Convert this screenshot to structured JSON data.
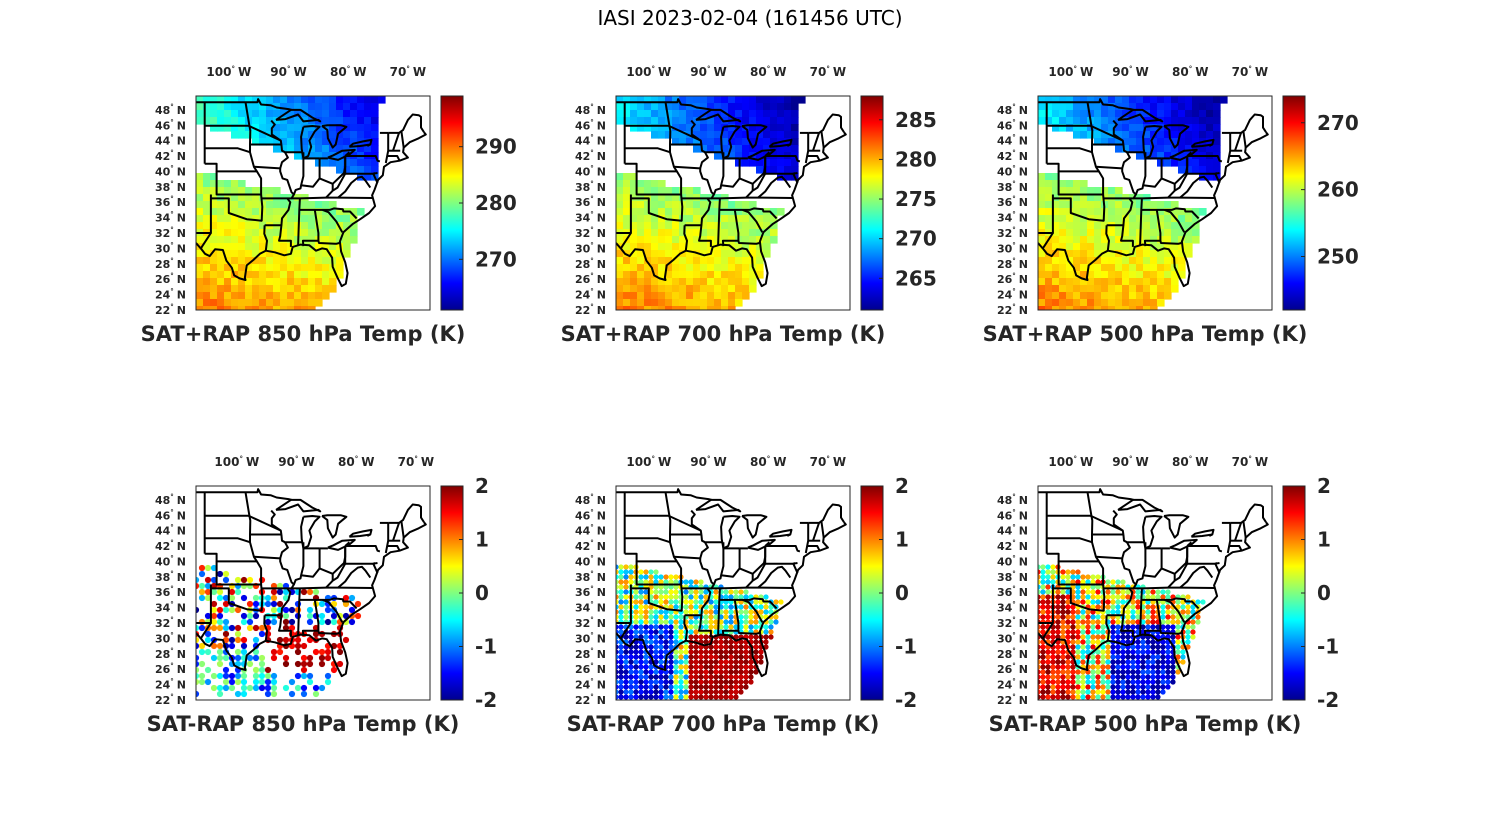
{
  "title": "IASI 2023-02-04 (161456 UTC)",
  "colormap": "jet",
  "colormap_stops": [
    "#00008f",
    "#0000ff",
    "#0080ff",
    "#00ffff",
    "#80ff80",
    "#ffff00",
    "#ff8000",
    "#ff0000",
    "#800000"
  ],
  "map_line_color": "#000000",
  "lon_ticks": [
    {
      "deg": "100",
      "hem": "W"
    },
    {
      "deg": "90",
      "hem": "W"
    },
    {
      "deg": "80",
      "hem": "W"
    },
    {
      "deg": "70",
      "hem": "W"
    }
  ],
  "lat_ticks": [
    {
      "deg": "48",
      "hem": "N"
    },
    {
      "deg": "46",
      "hem": "N"
    },
    {
      "deg": "44",
      "hem": "N"
    },
    {
      "deg": "42",
      "hem": "N"
    },
    {
      "deg": "40",
      "hem": "N"
    },
    {
      "deg": "38",
      "hem": "N"
    },
    {
      "deg": "36",
      "hem": "N"
    },
    {
      "deg": "34",
      "hem": "N"
    },
    {
      "deg": "32",
      "hem": "N"
    },
    {
      "deg": "30",
      "hem": "N"
    },
    {
      "deg": "28",
      "hem": "N"
    },
    {
      "deg": "26",
      "hem": "N"
    },
    {
      "deg": "24",
      "hem": "N"
    },
    {
      "deg": "22",
      "hem": "N"
    }
  ],
  "panels": [
    {
      "title": "SAT+RAP 850 hPa Temp (K)",
      "clim": [
        261,
        299
      ],
      "ticks": [
        "270",
        "280",
        "290"
      ],
      "kind": "temp"
    },
    {
      "title": "SAT+RAP 700 hPa Temp (K)",
      "clim": [
        261,
        288
      ],
      "ticks": [
        "265",
        "270",
        "275",
        "280",
        "285"
      ],
      "kind": "temp"
    },
    {
      "title": "SAT+RAP 500 hPa Temp (K)",
      "clim": [
        242,
        274
      ],
      "ticks": [
        "250",
        "260",
        "270"
      ],
      "kind": "temp"
    },
    {
      "title": "SAT-RAP 850 hPa Temp (K)",
      "clim": [
        -2,
        2
      ],
      "ticks": [
        "-2",
        "-1",
        "0",
        "1",
        "2"
      ],
      "kind": "diff"
    },
    {
      "title": "SAT-RAP 700 hPa Temp (K)",
      "clim": [
        -2,
        2
      ],
      "ticks": [
        "-2",
        "-1",
        "0",
        "1",
        "2"
      ],
      "kind": "diff"
    },
    {
      "title": "SAT-RAP 500 hPa Temp (K)",
      "clim": [
        -2,
        2
      ],
      "ticks": [
        "-2",
        "-1",
        "0",
        "1",
        "2"
      ],
      "kind": "diff"
    }
  ]
}
